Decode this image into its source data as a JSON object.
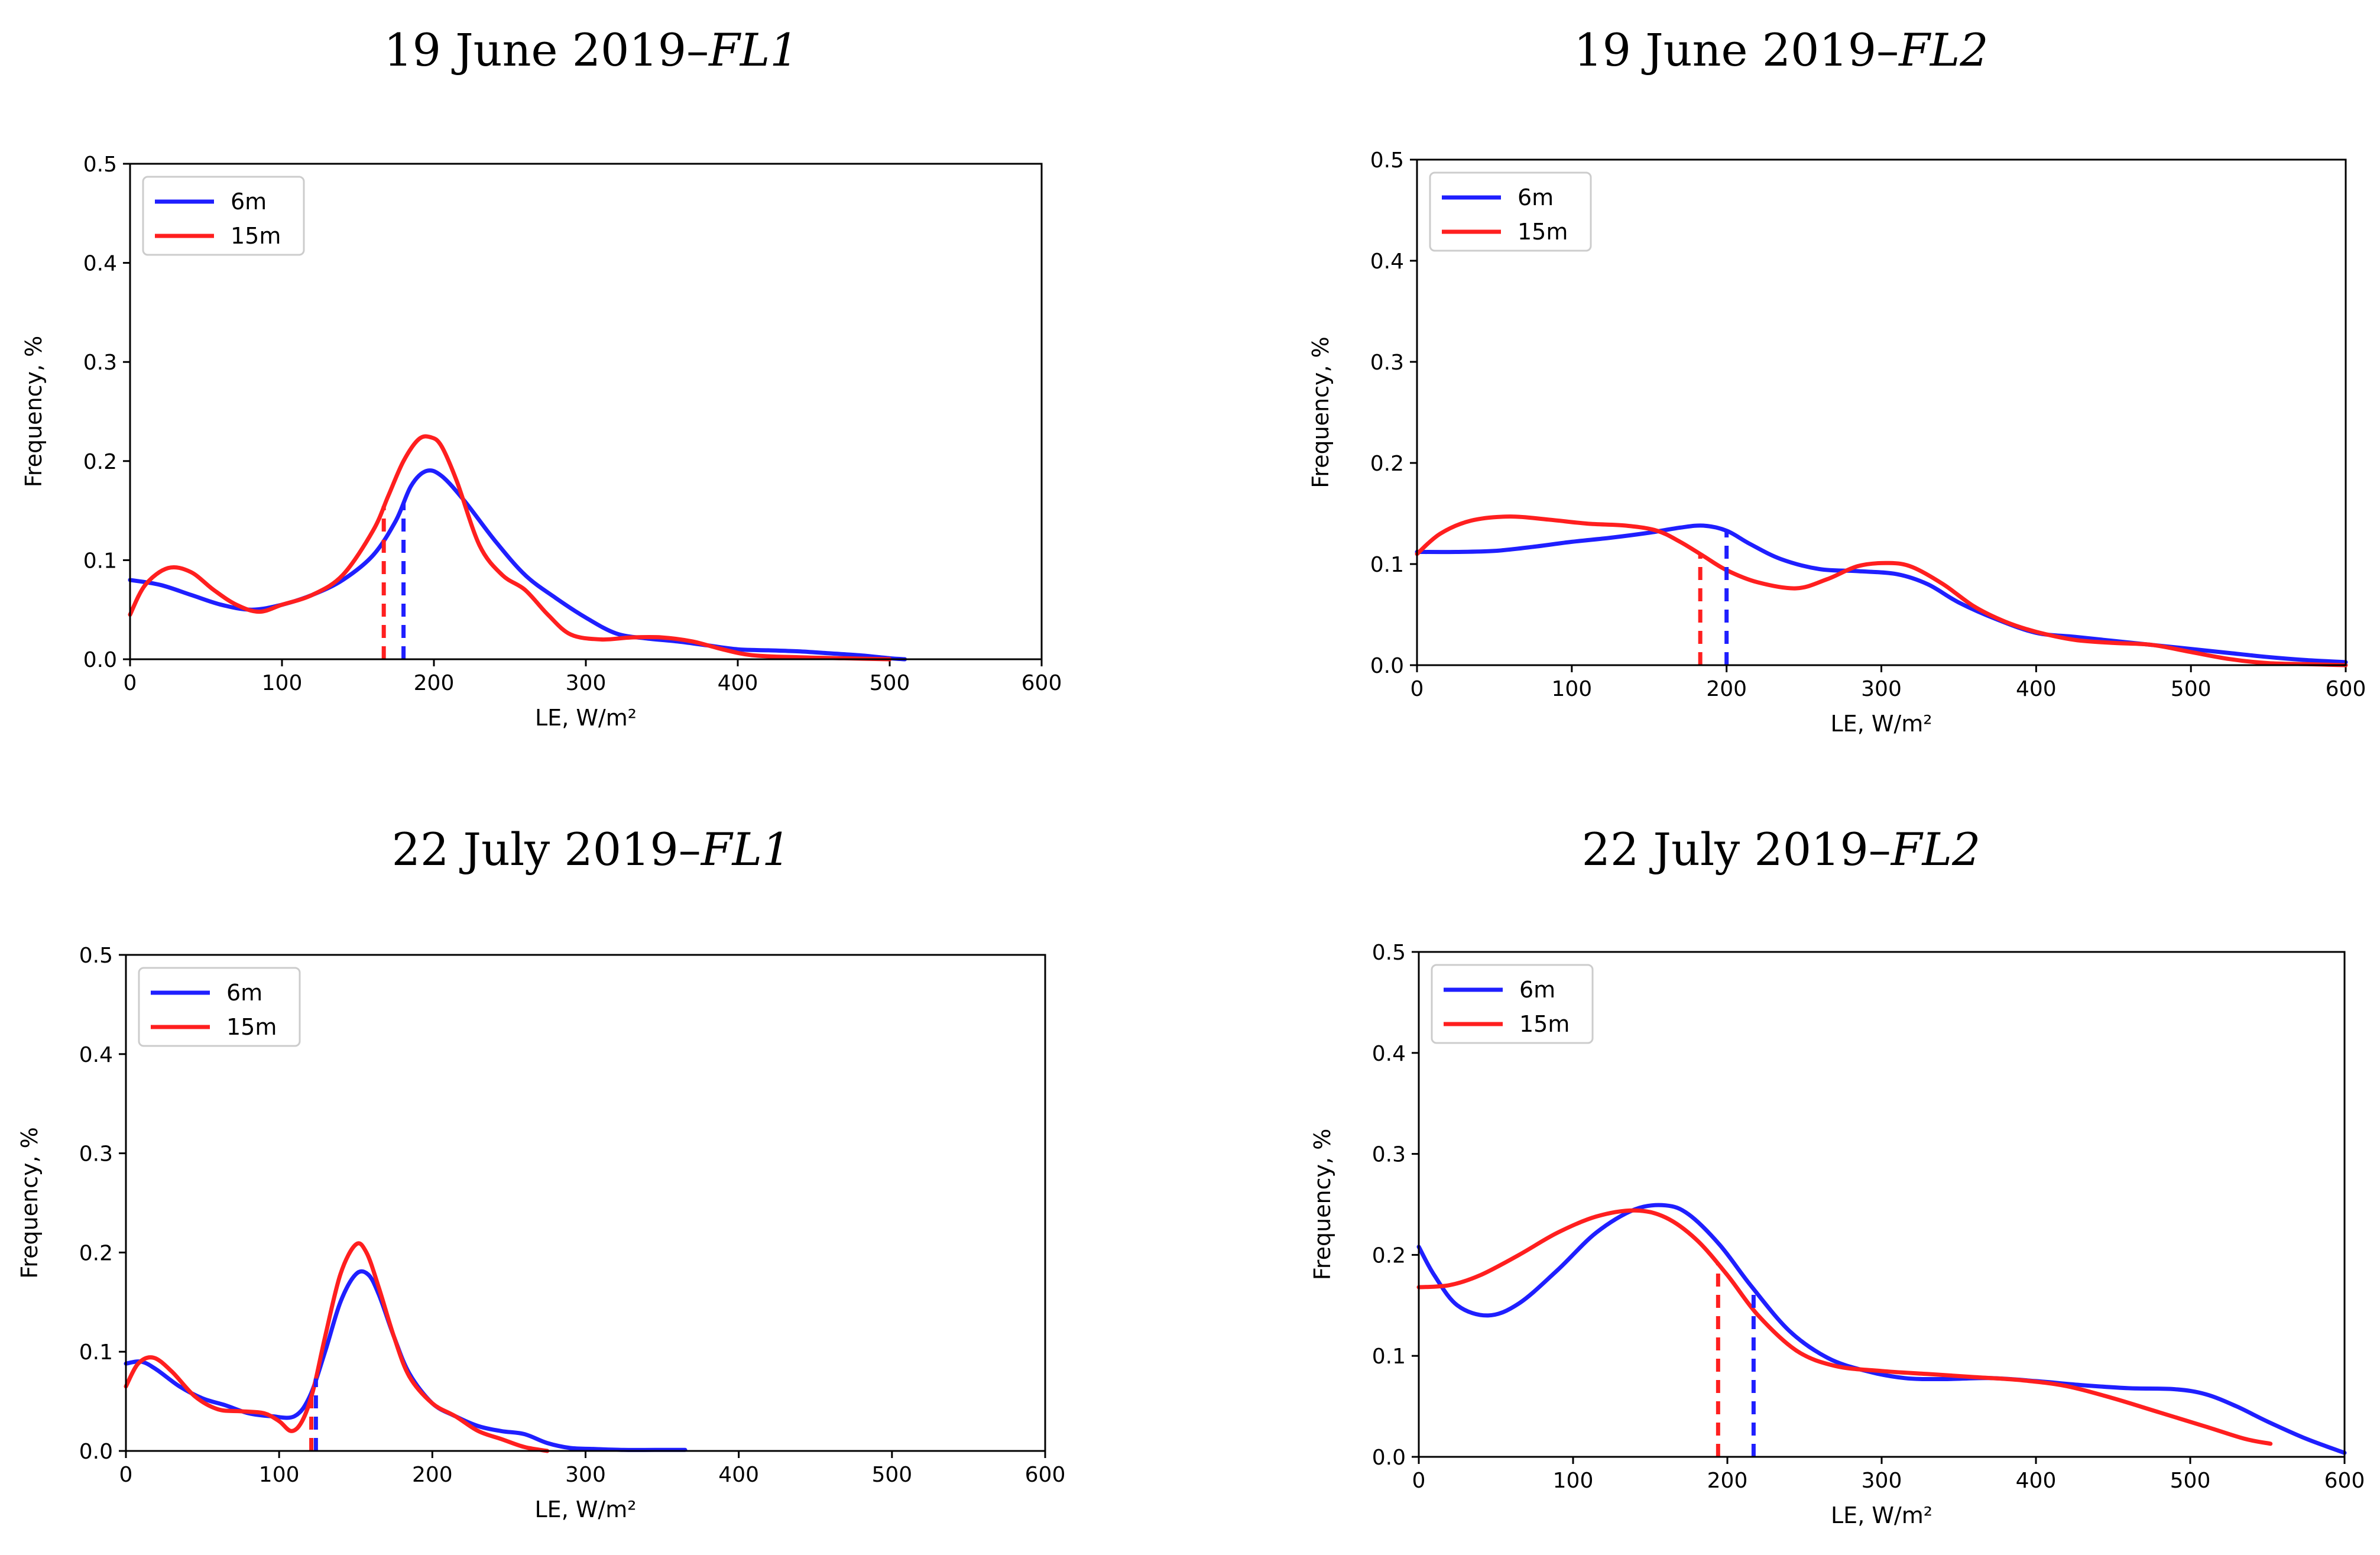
{
  "chart_data": [
    {
      "type": "line",
      "title": "19 June 2019–",
      "title_italic": "FL1",
      "xlabel": "LE, W/m²",
      "ylabel": "Frequency, %",
      "xlim": [
        0,
        600
      ],
      "ylim": [
        0,
        0.5
      ],
      "xticks": [
        "0",
        "100",
        "200",
        "300",
        "400",
        "500",
        "600"
      ],
      "yticks": [
        "0.0",
        "0.1",
        "0.2",
        "0.3",
        "0.4",
        "0.5"
      ],
      "legend_position": "top-left",
      "series": [
        {
          "name": "6m",
          "color": "#1f1fff",
          "x": [
            0,
            20,
            40,
            60,
            80,
            100,
            120,
            140,
            160,
            175,
            185,
            195,
            205,
            220,
            240,
            260,
            280,
            300,
            320,
            340,
            360,
            380,
            400,
            420,
            440,
            460,
            480,
            500,
            510
          ],
          "y": [
            0.08,
            0.075,
            0.065,
            0.055,
            0.05,
            0.055,
            0.065,
            0.08,
            0.105,
            0.14,
            0.175,
            0.19,
            0.185,
            0.16,
            0.12,
            0.085,
            0.062,
            0.042,
            0.026,
            0.021,
            0.018,
            0.014,
            0.01,
            0.009,
            0.008,
            0.006,
            0.004,
            0.001,
            0.0
          ],
          "median": 180
        },
        {
          "name": "15m",
          "color": "#ff1f1f",
          "x": [
            0,
            10,
            25,
            40,
            55,
            70,
            85,
            100,
            120,
            140,
            160,
            170,
            180,
            190,
            198,
            205,
            215,
            230,
            245,
            260,
            275,
            290,
            310,
            330,
            350,
            370,
            390,
            410,
            440,
            470,
            500
          ],
          "y": [
            0.045,
            0.075,
            0.092,
            0.088,
            0.07,
            0.055,
            0.048,
            0.055,
            0.065,
            0.085,
            0.13,
            0.165,
            0.2,
            0.222,
            0.224,
            0.215,
            0.18,
            0.115,
            0.085,
            0.07,
            0.045,
            0.025,
            0.02,
            0.022,
            0.022,
            0.018,
            0.01,
            0.004,
            0.002,
            0.001,
            0.0
          ],
          "median": 167
        }
      ]
    },
    {
      "type": "line",
      "title": "19 June 2019–",
      "title_italic": "FL2",
      "xlabel": "LE, W/m²",
      "ylabel": "Frequency, %",
      "xlim": [
        0,
        600
      ],
      "ylim": [
        0,
        0.5
      ],
      "xticks": [
        "0",
        "100",
        "200",
        "300",
        "400",
        "500",
        "600"
      ],
      "yticks": [
        "0.0",
        "0.1",
        "0.2",
        "0.3",
        "0.4",
        "0.5"
      ],
      "legend_position": "top-left",
      "series": [
        {
          "name": "6m",
          "color": "#1f1fff",
          "x": [
            0,
            25,
            50,
            75,
            100,
            125,
            150,
            170,
            185,
            200,
            215,
            235,
            260,
            285,
            310,
            330,
            350,
            375,
            400,
            425,
            450,
            475,
            500,
            525,
            550,
            575,
            600
          ],
          "y": [
            0.112,
            0.112,
            0.113,
            0.117,
            0.122,
            0.126,
            0.131,
            0.136,
            0.138,
            0.133,
            0.12,
            0.105,
            0.095,
            0.093,
            0.09,
            0.08,
            0.062,
            0.045,
            0.032,
            0.028,
            0.024,
            0.02,
            0.016,
            0.012,
            0.008,
            0.005,
            0.003
          ],
          "median": 200
        },
        {
          "name": "15m",
          "color": "#ff1f1f",
          "x": [
            0,
            15,
            35,
            60,
            85,
            110,
            135,
            155,
            170,
            185,
            200,
            220,
            245,
            265,
            285,
            305,
            320,
            340,
            360,
            380,
            400,
            425,
            450,
            475,
            500,
            525,
            550,
            575,
            600
          ],
          "y": [
            0.11,
            0.13,
            0.143,
            0.147,
            0.144,
            0.14,
            0.138,
            0.133,
            0.122,
            0.108,
            0.094,
            0.082,
            0.076,
            0.085,
            0.098,
            0.101,
            0.097,
            0.08,
            0.058,
            0.043,
            0.033,
            0.025,
            0.022,
            0.02,
            0.013,
            0.006,
            0.002,
            0.001,
            0.0
          ],
          "median": 183
        }
      ]
    },
    {
      "type": "line",
      "title": "22 July 2019–",
      "title_italic": "FL1",
      "xlabel": "LE, W/m²",
      "ylabel": "Frequency, %",
      "xlim": [
        0,
        600
      ],
      "ylim": [
        0,
        0.5
      ],
      "xticks": [
        "0",
        "100",
        "200",
        "300",
        "400",
        "500",
        "600"
      ],
      "yticks": [
        "0.0",
        "0.1",
        "0.2",
        "0.3",
        "0.4",
        "0.5"
      ],
      "legend_position": "top-left",
      "series": [
        {
          "name": "6m",
          "color": "#1f1fff",
          "x": [
            0,
            10,
            20,
            35,
            50,
            65,
            80,
            95,
            110,
            120,
            130,
            140,
            150,
            158,
            165,
            175,
            185,
            200,
            215,
            230,
            245,
            260,
            275,
            290,
            305,
            325,
            345,
            365
          ],
          "y": [
            0.088,
            0.09,
            0.082,
            0.065,
            0.053,
            0.046,
            0.038,
            0.035,
            0.035,
            0.055,
            0.1,
            0.15,
            0.178,
            0.178,
            0.158,
            0.115,
            0.078,
            0.048,
            0.035,
            0.025,
            0.02,
            0.017,
            0.008,
            0.003,
            0.002,
            0.001,
            0.001,
            0.001
          ],
          "median": 124
        },
        {
          "name": "15m",
          "color": "#ff1f1f",
          "x": [
            0,
            8,
            18,
            30,
            45,
            60,
            75,
            90,
            100,
            108,
            115,
            122,
            130,
            140,
            150,
            157,
            165,
            175,
            185,
            200,
            215,
            230,
            245,
            260,
            275
          ],
          "y": [
            0.065,
            0.088,
            0.094,
            0.08,
            0.055,
            0.042,
            0.04,
            0.038,
            0.03,
            0.02,
            0.03,
            0.06,
            0.115,
            0.178,
            0.208,
            0.2,
            0.165,
            0.115,
            0.075,
            0.048,
            0.035,
            0.02,
            0.012,
            0.004,
            0.0
          ],
          "median": 121
        }
      ]
    },
    {
      "type": "line",
      "title": "22 July 2019–",
      "title_italic": "FL2",
      "xlabel": "LE, W/m²",
      "ylabel": "Frequency, %",
      "xlim": [
        0,
        600
      ],
      "ylim": [
        0,
        0.5
      ],
      "xticks": [
        "0",
        "100",
        "200",
        "300",
        "400",
        "500",
        "600"
      ],
      "yticks": [
        "0.0",
        "0.1",
        "0.2",
        "0.3",
        "0.4",
        "0.5"
      ],
      "legend_position": "top-left",
      "series": [
        {
          "name": "6m",
          "color": "#1f1fff",
          "x": [
            0,
            10,
            25,
            45,
            65,
            90,
            115,
            140,
            160,
            175,
            195,
            215,
            240,
            265,
            290,
            315,
            340,
            370,
            400,
            430,
            460,
            490,
            510,
            530,
            550,
            575,
            600
          ],
          "y": [
            0.208,
            0.18,
            0.15,
            0.14,
            0.152,
            0.185,
            0.222,
            0.245,
            0.249,
            0.24,
            0.21,
            0.17,
            0.125,
            0.098,
            0.085,
            0.078,
            0.077,
            0.078,
            0.075,
            0.071,
            0.068,
            0.067,
            0.062,
            0.05,
            0.035,
            0.018,
            0.004
          ],
          "median": 217
        },
        {
          "name": "15m",
          "color": "#ff1f1f",
          "x": [
            0,
            20,
            40,
            65,
            90,
            115,
            140,
            160,
            180,
            200,
            220,
            245,
            270,
            300,
            330,
            360,
            390,
            420,
            450,
            480,
            510,
            535,
            552
          ],
          "y": [
            0.168,
            0.17,
            0.18,
            0.2,
            0.222,
            0.238,
            0.244,
            0.237,
            0.215,
            0.18,
            0.14,
            0.105,
            0.09,
            0.085,
            0.082,
            0.079,
            0.076,
            0.07,
            0.058,
            0.044,
            0.03,
            0.018,
            0.013
          ],
          "median": 194
        }
      ]
    }
  ]
}
